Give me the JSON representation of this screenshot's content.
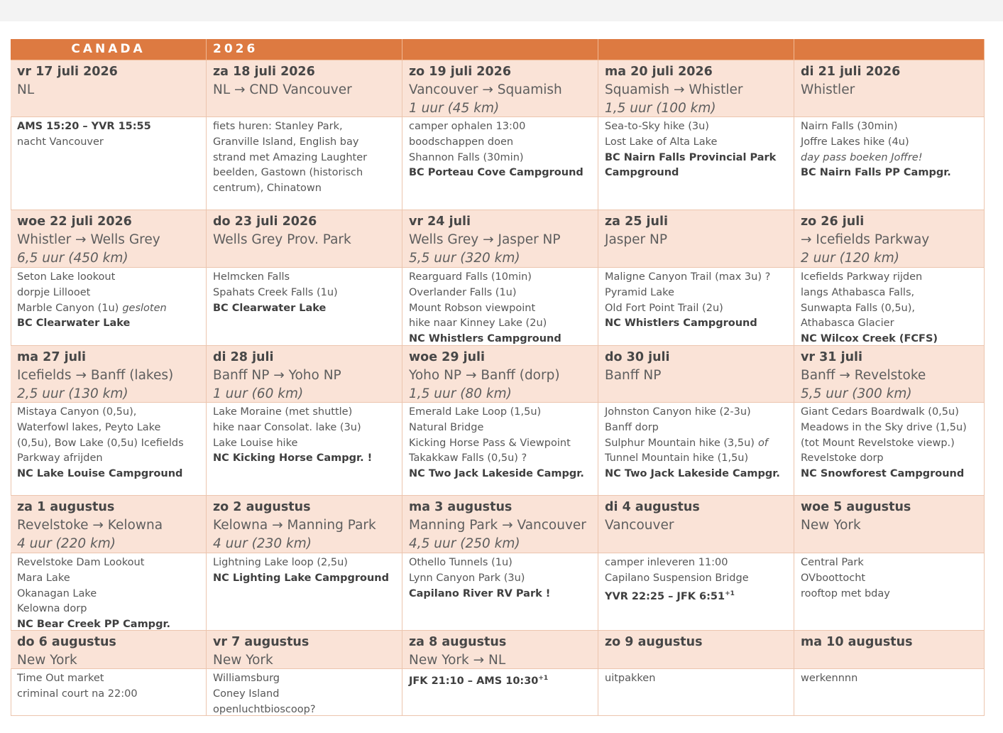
{
  "header": {
    "cells": [
      "CANADA",
      "2026"
    ]
  },
  "weeks": [
    {
      "days": [
        {
          "date": "vr 17 juli 2026",
          "route": "NL",
          "items": [
            {
              "text": "AMS 15:20 – YVR 15:55",
              "style": "bold"
            },
            "nacht Vancouver"
          ]
        },
        {
          "date": "za 18 juli 2026",
          "route": "NL → CND  Vancouver",
          "items": [
            "fiets huren: Stanley Park,",
            "Granville Island, English bay",
            "strand met Amazing Laughter",
            "beelden, Gastown (historisch",
            "centrum), Chinatown"
          ]
        },
        {
          "date": "zo 19 juli 2026",
          "route": "Vancouver → Squamish",
          "duration": "1 uur (45 km)",
          "items": [
            "camper ophalen 13:00",
            "boodschappen doen",
            "Shannon Falls (30min)",
            {
              "text": "BC Porteau Cove Campground",
              "style": "bold"
            }
          ]
        },
        {
          "date": "ma 20 juli 2026",
          "route": "Squamish → Whistler",
          "duration": "1,5 uur (100 km)",
          "items": [
            "Sea-to-Sky hike (3u)",
            "Lost Lake of Alta Lake",
            {
              "text": "BC Nairn Falls Provincial Park",
              "style": "bold"
            },
            {
              "text": "Campground",
              "style": "bold"
            }
          ]
        },
        {
          "date": "di 21 juli 2026",
          "route": "Whistler",
          "items": [
            "Nairn Falls (30min)",
            "Joffre Lakes hike (4u)",
            {
              "text": "day pass boeken Joffre!",
              "style": "italic"
            },
            {
              "text": "BC Nairn Falls PP Campgr.",
              "style": "bold"
            }
          ]
        }
      ]
    },
    {
      "days": [
        {
          "date": "woe 22 juli 2026",
          "route": "Whistler → Wells Grey",
          "duration": "6,5 uur (450 km)",
          "items": [
            "Seton Lake lookout",
            "dorpje Lillooet",
            {
              "text": "Marble Canyon (1u)",
              "note": "gesloten"
            },
            {
              "text": "BC Clearwater Lake",
              "style": "bold"
            }
          ]
        },
        {
          "date": "do 23 juli 2026",
          "route": "Wells Grey Prov. Park",
          "items": [
            "Helmcken Falls",
            "Spahats Creek Falls (1u)",
            {
              "text": "BC Clearwater Lake",
              "style": "bold"
            }
          ]
        },
        {
          "date": "vr 24 juli",
          "route": "Wells Grey → Jasper NP",
          "duration": "5,5 uur (320 km)",
          "items": [
            "Rearguard Falls (10min)",
            "Overlander Falls (1u)",
            "Mount Robson viewpoint",
            "hike naar Kinney Lake (2u)",
            {
              "text": "NC Whistlers Campground",
              "style": "bold"
            }
          ]
        },
        {
          "date": "za 25 juli",
          "route": "Jasper NP",
          "items": [
            "Maligne Canyon Trail (max 3u) ?",
            "Pyramid Lake",
            "Old Fort Point Trail (2u)",
            {
              "text": "NC Whistlers Campground",
              "style": "bold"
            }
          ]
        },
        {
          "date": "zo 26 juli",
          "route": "→ Icefields Parkway",
          "duration": "2 uur (120 km)",
          "items": [
            "Icefields Parkway rijden",
            "langs Athabasca Falls,",
            "Sunwapta Falls (0,5u),",
            "Athabasca Glacier",
            {
              "text": "NC Wilcox Creek (FCFS)",
              "style": "bold"
            }
          ]
        }
      ]
    },
    {
      "days": [
        {
          "date": "ma 27 juli",
          "route": "Icefields → Banff (lakes)",
          "duration": "2,5 uur (130 km)",
          "items": [
            "Mistaya Canyon (0,5u),",
            "Waterfowl lakes, Peyto Lake",
            "(0,5u), Bow Lake (0,5u) Icefields",
            "Parkway afrijden",
            {
              "text": "NC Lake Louise Campground",
              "style": "bold"
            }
          ]
        },
        {
          "date": "di 28 juli",
          "route": "Banff NP → Yoho NP",
          "duration": "1 uur (60 km)",
          "items": [
            "Lake Moraine (met shuttle)",
            "hike naar Consolat. lake (3u)",
            "Lake Louise hike",
            {
              "text": "NC Kicking Horse Campgr. !",
              "style": "bold"
            }
          ]
        },
        {
          "date": "woe 29 juli",
          "route": "Yoho NP → Banff (dorp)",
          "duration": "1,5 uur (80 km)",
          "items": [
            "Emerald Lake Loop (1,5u)",
            "Natural Bridge",
            "Kicking Horse Pass & Viewpoint",
            "Takakkaw Falls (0,5u) ?",
            {
              "text": "NC Two Jack Lakeside Campgr.",
              "style": "bold"
            }
          ]
        },
        {
          "date": "do 30 juli",
          "route": "Banff NP",
          "items": [
            "Johnston Canyon hike (2-3u)",
            "Banff dorp",
            {
              "text": "Sulphur Mountain hike (3,5u)",
              "note": "of"
            },
            "Tunnel Mountain hike (1,5u)",
            {
              "text": "NC Two Jack Lakeside Campgr.",
              "style": "bold"
            }
          ]
        },
        {
          "date": "vr 31 juli",
          "route": "Banff → Revelstoke",
          "duration": "5,5 uur (300 km)",
          "items": [
            "Giant Cedars Boardwalk (0,5u)",
            "Meadows in the Sky drive (1,5u)",
            "(tot Mount Revelstoke viewp.)",
            "Revelstoke dorp",
            {
              "text": "NC Snowforest Campground",
              "style": "bold"
            }
          ]
        }
      ]
    },
    {
      "days": [
        {
          "date": "za 1 augustus",
          "route": "Revelstoke → Kelowna",
          "duration": "4 uur (220 km)",
          "items": [
            "Revelstoke Dam Lookout",
            "Mara Lake",
            "Okanagan Lake",
            "Kelowna dorp",
            {
              "text": "NC Bear Creek PP Campgr.",
              "style": "bold"
            }
          ]
        },
        {
          "date": "zo 2 augustus",
          "route": "Kelowna → Manning Park",
          "duration": "4 uur (230 km)",
          "items": [
            "Lightning Lake loop (2,5u)",
            {
              "text": "NC Lighting Lake Campground",
              "style": "bold"
            }
          ]
        },
        {
          "date": "ma 3 augustus",
          "route": "Manning Park → Vancouver",
          "duration": "4,5 uur (250 km)",
          "items": [
            "Othello Tunnels (1u)",
            "Lynn Canyon Park (3u)",
            {
              "text": "Capilano River RV Park !",
              "style": "bold"
            }
          ]
        },
        {
          "date": "di 4 augustus",
          "route": "Vancouver",
          "items": [
            "camper inleveren 11:00",
            "Capilano Suspension Bridge",
            {
              "text": "YVR 22:25 – JFK 6:51",
              "style": "bold",
              "sup": "+1"
            }
          ]
        },
        {
          "date": "woe 5 augustus",
          "route": "New York",
          "items": [
            "Central Park",
            "OVboottocht",
            "rooftop met bday"
          ]
        }
      ]
    },
    {
      "days": [
        {
          "date": "do 6 augustus",
          "route": "New York",
          "items": [
            "Time Out market",
            "criminal court na 22:00"
          ]
        },
        {
          "date": "vr 7 augustus",
          "route": "New York",
          "items": [
            "Williamsburg",
            "Coney Island",
            "openluchtbioscoop?"
          ]
        },
        {
          "date": "za 8 augustus",
          "route": "New York → NL",
          "items": [
            {
              "text": "JFK 21:10 – AMS 10:30",
              "style": "bold",
              "sup": "+1"
            }
          ]
        },
        {
          "date": "zo 9 augustus",
          "items": [
            "uitpakken"
          ]
        },
        {
          "date": "ma 10 augustus",
          "items": [
            "werkennnn"
          ]
        }
      ]
    }
  ]
}
